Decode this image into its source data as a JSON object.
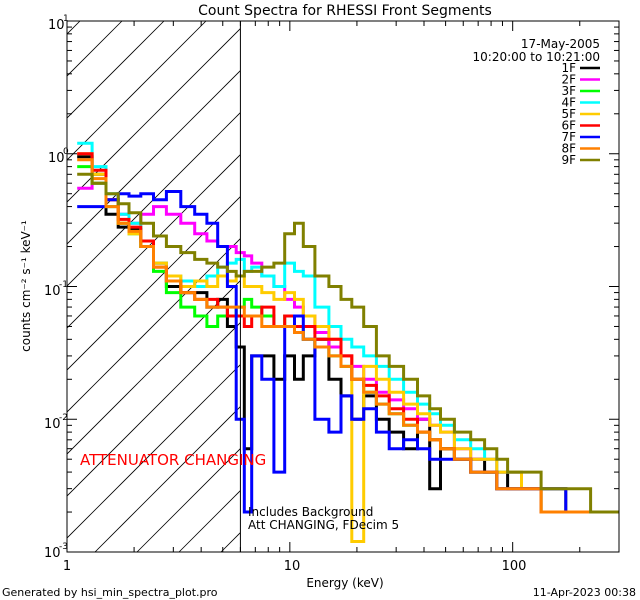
{
  "chart_data": {
    "type": "line",
    "title": "Count Spectra for RHESSI Front Segments",
    "xlabel": "Energy (keV)",
    "ylabel": "counts cm⁻² s⁻¹ keV⁻¹",
    "xscale": "log",
    "yscale": "log",
    "xlim": [
      1,
      300
    ],
    "ylim": [
      0.001,
      10
    ],
    "x_tick_labels": [
      {
        "value": 1,
        "label": "1"
      },
      {
        "value": 10,
        "label": "10"
      },
      {
        "value": 100,
        "label": "100"
      }
    ],
    "y_tick_labels": [
      {
        "value": 10,
        "base": "10",
        "exp": "1"
      },
      {
        "value": 1,
        "base": "10",
        "exp": "0"
      },
      {
        "value": 0.1,
        "base": "10",
        "exp": "-1"
      },
      {
        "value": 0.01,
        "base": "10",
        "exp": "-2"
      },
      {
        "value": 0.001,
        "base": "10",
        "exp": "-3"
      }
    ],
    "date": "17-May-2005",
    "time_range": "10:20:00 to 10:21:00",
    "attenuator_boundary_kev": 6,
    "attenuator_label": "ATTENUATOR CHANGING",
    "annotations": [
      "Includes Background",
      "Att CHANGING, FDecim 5"
    ],
    "series": [
      {
        "name": "1F",
        "color": "#000000",
        "x": [
          1.2,
          1.4,
          1.6,
          1.8,
          2.0,
          2.3,
          2.6,
          3.0,
          3.5,
          4.0,
          4.5,
          5.0,
          5.5,
          6.0,
          6.5,
          7.0,
          8.0,
          9.0,
          10,
          11,
          12,
          14,
          16,
          18,
          20,
          23,
          26,
          30,
          35,
          40,
          45,
          50,
          60,
          70,
          80,
          90,
          100,
          120,
          150,
          200,
          250,
          290
        ],
        "values": [
          0.95,
          0.7,
          0.35,
          0.28,
          0.27,
          0.2,
          0.15,
          0.1,
          0.09,
          0.09,
          0.07,
          0.08,
          0.05,
          0.035,
          0.006,
          0.03,
          0.03,
          0.02,
          0.03,
          0.02,
          0.03,
          0.04,
          0.02,
          0.015,
          0.01,
          0.015,
          0.01,
          0.008,
          0.006,
          0.01,
          0.003,
          0.006,
          0.005,
          0.005,
          0.004,
          0.004,
          0.003,
          0.003,
          0.003,
          0.002,
          0.002,
          0.002
        ]
      },
      {
        "name": "2F",
        "color": "#ff00ff",
        "x": [
          1.2,
          1.4,
          1.6,
          1.8,
          2.0,
          2.3,
          2.6,
          3.0,
          3.5,
          4.0,
          4.5,
          5.0,
          5.5,
          6.0,
          6.5,
          7.0,
          8.0,
          9.0,
          10,
          11,
          12,
          14,
          16,
          18,
          20,
          23,
          26,
          30,
          35,
          40,
          45,
          50,
          60,
          70,
          80,
          90,
          100,
          120,
          150,
          200,
          250,
          290
        ],
        "values": [
          0.55,
          0.6,
          0.45,
          0.35,
          0.3,
          0.35,
          0.4,
          0.35,
          0.3,
          0.25,
          0.22,
          0.2,
          0.2,
          0.18,
          0.17,
          0.15,
          0.12,
          0.1,
          0.08,
          0.07,
          0.06,
          0.045,
          0.035,
          0.03,
          0.025,
          0.02,
          0.016,
          0.014,
          0.012,
          0.01,
          0.009,
          0.008,
          0.006,
          0.005,
          0.005,
          0.004,
          0.004,
          0.003,
          0.003,
          0.002,
          0.002,
          0.002
        ]
      },
      {
        "name": "3F",
        "color": "#00ff00",
        "x": [
          1.2,
          1.4,
          1.6,
          1.8,
          2.0,
          2.3,
          2.6,
          3.0,
          3.5,
          4.0,
          4.5,
          5.0,
          5.5,
          6.0,
          6.5,
          7.0,
          8.0,
          9.0,
          10,
          11,
          12,
          14,
          16,
          18,
          20,
          23,
          26,
          30,
          35,
          40,
          45,
          50,
          60,
          70,
          80,
          90,
          100,
          120,
          150,
          200,
          250,
          290
        ],
        "values": [
          0.8,
          0.6,
          0.4,
          0.3,
          0.25,
          0.2,
          0.13,
          0.09,
          0.07,
          0.06,
          0.05,
          0.06,
          0.06,
          0.07,
          0.08,
          0.07,
          0.06,
          0.05,
          0.06,
          0.05,
          0.04,
          0.035,
          0.03,
          0.025,
          0.02,
          0.016,
          0.013,
          0.011,
          0.009,
          0.008,
          0.007,
          0.006,
          0.005,
          0.004,
          0.004,
          0.003,
          0.003,
          0.003,
          0.002,
          0.002,
          0.002,
          0.002
        ]
      },
      {
        "name": "4F",
        "color": "#00ffff",
        "x": [
          1.2,
          1.4,
          1.6,
          1.8,
          2.0,
          2.3,
          2.6,
          3.0,
          3.5,
          4.0,
          4.5,
          5.0,
          5.5,
          6.0,
          6.5,
          7.0,
          8.0,
          9.0,
          10,
          11,
          12,
          14,
          16,
          18,
          20,
          23,
          26,
          30,
          35,
          40,
          45,
          50,
          60,
          70,
          80,
          90,
          100,
          120,
          150,
          200,
          250,
          290
        ],
        "values": [
          1.2,
          0.8,
          0.5,
          0.35,
          0.3,
          0.22,
          0.15,
          0.12,
          0.11,
          0.1,
          0.12,
          0.14,
          0.15,
          0.16,
          0.13,
          0.14,
          0.12,
          0.1,
          0.15,
          0.13,
          0.12,
          0.07,
          0.05,
          0.04,
          0.035,
          0.03,
          0.025,
          0.02,
          0.016,
          0.013,
          0.011,
          0.009,
          0.007,
          0.006,
          0.005,
          0.004,
          0.004,
          0.003,
          0.003,
          0.002,
          0.002,
          0.002
        ]
      },
      {
        "name": "5F",
        "color": "#ffcc00",
        "x": [
          1.2,
          1.4,
          1.6,
          1.8,
          2.0,
          2.3,
          2.6,
          3.0,
          3.5,
          4.0,
          4.5,
          5.0,
          5.5,
          6.0,
          6.5,
          7.0,
          8.0,
          9.0,
          10,
          11,
          12,
          14,
          16,
          18,
          20,
          23,
          26,
          30,
          35,
          40,
          45,
          50,
          60,
          70,
          80,
          90,
          100,
          120,
          150,
          200,
          250,
          290
        ],
        "values": [
          1.0,
          0.7,
          0.45,
          0.3,
          0.25,
          0.2,
          0.15,
          0.12,
          0.1,
          0.11,
          0.1,
          0.12,
          0.11,
          0.12,
          0.1,
          0.1,
          0.09,
          0.08,
          0.09,
          0.08,
          0.06,
          0.05,
          0.04,
          0.03,
          0.0012,
          0.025,
          0.02,
          0.016,
          0.013,
          0.011,
          0.009,
          0.008,
          0.006,
          0.005,
          0.005,
          0.004,
          0.004,
          0.003,
          0.003,
          0.002,
          0.002,
          0.002
        ]
      },
      {
        "name": "6F",
        "color": "#ff0000",
        "x": [
          1.2,
          1.4,
          1.6,
          1.8,
          2.0,
          2.3,
          2.6,
          3.0,
          3.5,
          4.0,
          4.5,
          5.0,
          5.5,
          6.0,
          6.5,
          7.0,
          8.0,
          9.0,
          10,
          11,
          12,
          14,
          16,
          18,
          20,
          23,
          26,
          30,
          35,
          40,
          45,
          50,
          60,
          70,
          80,
          90,
          100,
          120,
          150,
          200,
          250,
          290
        ],
        "values": [
          1.0,
          0.75,
          0.45,
          0.32,
          0.28,
          0.22,
          0.14,
          0.11,
          0.09,
          0.08,
          0.08,
          0.07,
          0.06,
          0.06,
          0.05,
          0.06,
          0.07,
          0.05,
          0.06,
          0.05,
          0.05,
          0.04,
          0.04,
          0.03,
          0.02,
          0.018,
          0.015,
          0.012,
          0.01,
          0.008,
          0.007,
          0.006,
          0.005,
          0.004,
          0.004,
          0.003,
          0.003,
          0.003,
          0.002,
          0.002,
          0.002,
          0.002
        ]
      },
      {
        "name": "7F",
        "color": "#0000ff",
        "x": [
          1.2,
          1.4,
          1.6,
          1.8,
          2.0,
          2.3,
          2.6,
          3.0,
          3.5,
          4.0,
          4.5,
          5.0,
          5.5,
          6.0,
          6.5,
          7.0,
          8.0,
          9.0,
          10,
          11,
          12,
          14,
          16,
          18,
          20,
          23,
          26,
          30,
          35,
          40,
          45,
          50,
          60,
          70,
          80,
          90,
          100,
          120,
          150,
          200,
          250,
          290
        ],
        "values": [
          0.4,
          0.4,
          0.45,
          0.5,
          0.48,
          0.5,
          0.45,
          0.52,
          0.4,
          0.35,
          0.3,
          0.2,
          0.1,
          0.01,
          0.002,
          0.03,
          0.02,
          0.004,
          0.05,
          0.06,
          0.04,
          0.01,
          0.008,
          0.015,
          0.01,
          0.012,
          0.008,
          0.006,
          0.007,
          0.006,
          0.005,
          0.005,
          0.005,
          0.004,
          0.004,
          0.003,
          0.003,
          0.003,
          0.003,
          0.002,
          0.002,
          0.002
        ]
      },
      {
        "name": "8F",
        "color": "#ff8000",
        "x": [
          1.2,
          1.4,
          1.6,
          1.8,
          2.0,
          2.3,
          2.6,
          3.0,
          3.5,
          4.0,
          4.5,
          5.0,
          5.5,
          6.0,
          6.5,
          7.0,
          8.0,
          9.0,
          10,
          11,
          12,
          14,
          16,
          18,
          20,
          23,
          26,
          30,
          35,
          40,
          45,
          50,
          60,
          70,
          80,
          90,
          100,
          120,
          150,
          200,
          250,
          290
        ],
        "values": [
          0.9,
          0.65,
          0.4,
          0.3,
          0.26,
          0.2,
          0.14,
          0.11,
          0.09,
          0.08,
          0.07,
          0.07,
          0.07,
          0.07,
          0.06,
          0.06,
          0.05,
          0.05,
          0.05,
          0.045,
          0.04,
          0.035,
          0.03,
          0.025,
          0.02,
          0.016,
          0.013,
          0.011,
          0.009,
          0.008,
          0.007,
          0.006,
          0.005,
          0.004,
          0.004,
          0.003,
          0.003,
          0.003,
          0.002,
          0.002,
          0.002,
          0.002
        ]
      },
      {
        "name": "9F",
        "color": "#808000",
        "x": [
          1.2,
          1.4,
          1.6,
          1.8,
          2.0,
          2.3,
          2.6,
          3.0,
          3.5,
          4.0,
          4.5,
          5.0,
          5.5,
          6.0,
          6.5,
          7.0,
          8.0,
          9.0,
          10,
          11,
          12,
          14,
          16,
          18,
          20,
          23,
          26,
          30,
          35,
          40,
          45,
          50,
          60,
          70,
          80,
          90,
          100,
          120,
          150,
          200,
          250,
          290
        ],
        "values": [
          0.7,
          0.6,
          0.5,
          0.42,
          0.36,
          0.3,
          0.24,
          0.2,
          0.18,
          0.16,
          0.15,
          0.14,
          0.13,
          0.12,
          0.13,
          0.13,
          0.14,
          0.15,
          0.25,
          0.3,
          0.2,
          0.12,
          0.1,
          0.08,
          0.07,
          0.05,
          0.03,
          0.025,
          0.02,
          0.015,
          0.012,
          0.01,
          0.008,
          0.007,
          0.006,
          0.005,
          0.004,
          0.004,
          0.003,
          0.003,
          0.002,
          0.002
        ]
      }
    ]
  },
  "footer": {
    "generator": "Generated by hsi_min_spectra_plot.pro",
    "timestamp": "11-Apr-2023 00:38"
  }
}
